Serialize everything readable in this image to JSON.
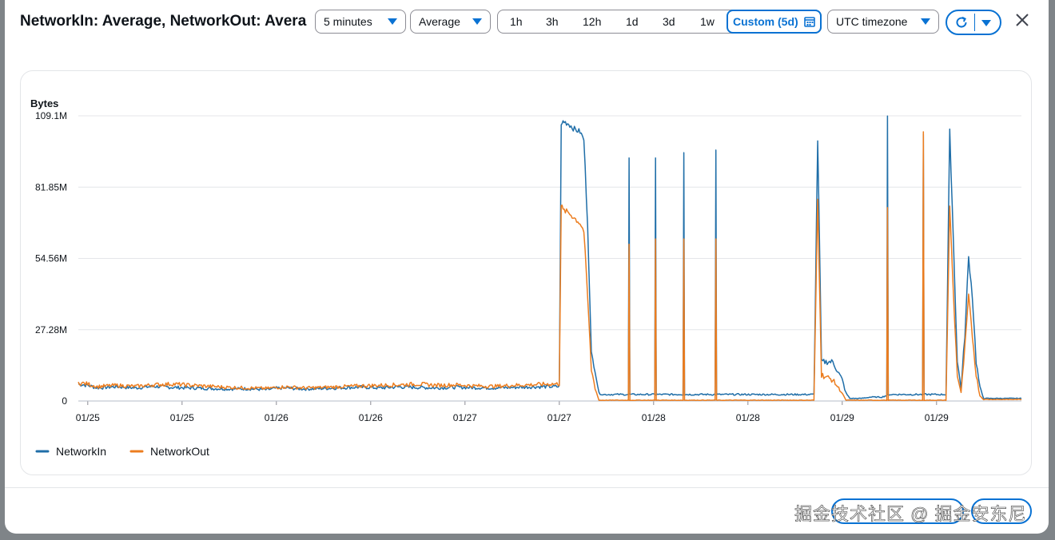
{
  "dialog": {
    "title": "NetworkIn: Average, NetworkOut: Avera",
    "period": "5 minutes",
    "statistic": "Average",
    "time_ranges": [
      "1h",
      "3h",
      "12h",
      "1d",
      "3d",
      "1w"
    ],
    "custom_range": "Custom (5d)",
    "timezone": "UTC timezone",
    "icons": {
      "close": "close-icon",
      "refresh": "refresh-icon",
      "calendar": "calendar-icon",
      "dropdown": "caret-down-icon"
    }
  },
  "footer": {
    "watermark": "掘金技术社区 @ 掘金安东尼"
  },
  "chart_data": {
    "type": "line",
    "ylabel": "Bytes",
    "yticks": [
      "109.1M",
      "81.85M",
      "54.56M",
      "27.28M",
      "0"
    ],
    "ylim": [
      0,
      109100000
    ],
    "xlim_days": [
      0,
      5
    ],
    "x_tick_labels": [
      "01/25",
      "01/25",
      "01/26",
      "01/26",
      "01/27",
      "01/27",
      "01/28",
      "01/28",
      "01/29",
      "01/29"
    ],
    "grid": true,
    "legend_position": "bottom-left",
    "colors": {
      "NetworkIn": "#1f6ea8",
      "NetworkOut": "#ec7d1f",
      "grid": "#e4e6e9"
    },
    "series": [
      {
        "name": "NetworkIn",
        "x": [
          0,
          0.05,
          0.1,
          0.2,
          0.3,
          0.4,
          0.5,
          0.6,
          0.7,
          0.8,
          0.9,
          1.0,
          1.05,
          1.1,
          1.2,
          1.3,
          1.4,
          1.5,
          1.6,
          1.7,
          1.8,
          1.9,
          2.0,
          2.1,
          2.2,
          2.3,
          2.4,
          2.5,
          2.55,
          2.56,
          2.57,
          2.6,
          2.63,
          2.66,
          2.68,
          2.7,
          2.72,
          2.74,
          2.76,
          2.78,
          2.8,
          2.82,
          2.84,
          2.86,
          2.88,
          2.9,
          2.92,
          2.94,
          2.96,
          2.98,
          3.0,
          3.1,
          3.2,
          3.3,
          3.4,
          3.42,
          3.44,
          3.5,
          3.6,
          3.7,
          3.8,
          3.9,
          3.92,
          3.94,
          4.0,
          4.05,
          4.07,
          4.09,
          4.12,
          4.15,
          4.2,
          4.26,
          4.3,
          4.32,
          4.34,
          4.4,
          4.5,
          4.53,
          4.55,
          4.57,
          4.6,
          4.62,
          4.64,
          4.66,
          4.68,
          4.7,
          4.72,
          4.74,
          4.76,
          4.78,
          4.8,
          4.82,
          4.85,
          4.9,
          5.0
        ],
        "values": [
          6.5,
          6.0,
          5.0,
          5.5,
          5.0,
          5.6,
          5.2,
          5.0,
          4.8,
          4.6,
          4.7,
          4.3,
          4.9,
          5.0,
          4.6,
          4.8,
          5.1,
          5.3,
          5.0,
          5.4,
          5.2,
          5.0,
          5.3,
          5.1,
          5.0,
          5.2,
          5.4,
          5.5,
          5.5,
          105,
          107,
          106,
          104,
          103,
          100,
          68,
          18,
          12,
          3,
          2.5,
          2.5,
          2.5,
          2.5,
          2.5,
          2.5,
          2.5,
          2.5,
          2.5,
          2.5,
          2.5,
          2.5,
          2.5,
          2.5,
          2.5,
          2.5,
          2.5,
          2.5,
          2.5,
          2.5,
          2.5,
          2.5,
          2.5,
          100,
          15,
          15,
          8,
          3,
          1,
          1,
          1,
          1.5,
          1.5,
          2.5,
          2.5,
          2.5,
          2.5,
          2.5,
          2.5,
          2.5,
          2.5,
          2.5,
          103,
          60,
          15,
          5,
          25,
          55,
          40,
          15,
          5,
          1,
          1,
          1,
          1,
          1
        ]
      },
      {
        "name": "NetworkOut",
        "x": [
          0,
          0.05,
          0.1,
          0.2,
          0.3,
          0.4,
          0.5,
          0.6,
          0.7,
          0.8,
          0.9,
          1.0,
          1.05,
          1.1,
          1.2,
          1.3,
          1.4,
          1.5,
          1.6,
          1.7,
          1.8,
          1.9,
          2.0,
          2.1,
          2.2,
          2.3,
          2.4,
          2.5,
          2.55,
          2.56,
          2.57,
          2.6,
          2.63,
          2.66,
          2.68,
          2.7,
          2.72,
          2.74,
          2.76,
          2.78,
          2.8,
          2.82,
          2.84,
          2.86,
          2.88,
          2.9,
          2.92,
          2.94,
          2.96,
          2.98,
          3.0,
          3.1,
          3.2,
          3.3,
          3.4,
          3.42,
          3.44,
          3.5,
          3.6,
          3.7,
          3.8,
          3.9,
          3.92,
          3.94,
          4.0,
          4.05,
          4.07,
          4.09,
          4.12,
          4.15,
          4.2,
          4.26,
          4.3,
          4.32,
          4.34,
          4.4,
          4.5,
          4.53,
          4.55,
          4.57,
          4.6,
          4.62,
          4.64,
          4.66,
          4.68,
          4.7,
          4.72,
          4.74,
          4.76,
          4.78,
          4.8,
          4.82,
          4.85,
          4.9,
          5.0
        ],
        "values": [
          7.0,
          6.5,
          5.5,
          6.0,
          5.6,
          6.2,
          6.5,
          6.0,
          5.6,
          5.2,
          5.0,
          4.8,
          5.2,
          5.4,
          5.0,
          5.2,
          5.5,
          5.8,
          6.0,
          6.2,
          6.5,
          6.0,
          6.2,
          5.8,
          5.6,
          6.0,
          6.2,
          6.5,
          6.5,
          75,
          73,
          72,
          70,
          68,
          65,
          40,
          12,
          5,
          0.2,
          0.2,
          0.2,
          0.2,
          0.2,
          0.2,
          0.2,
          0.2,
          0.2,
          0.2,
          0.2,
          0.2,
          0.2,
          0.2,
          0.2,
          0.2,
          0.2,
          0.2,
          0.2,
          0.2,
          0.2,
          0.2,
          0.2,
          0.2,
          77,
          10,
          8,
          3,
          0.2,
          0.2,
          0.2,
          0.2,
          0.2,
          0.2,
          0.2,
          0.2,
          0.2,
          0.2,
          0.2,
          0.2,
          0.2,
          0.2,
          0.2,
          74,
          40,
          10,
          3,
          20,
          40,
          25,
          10,
          2,
          0.5,
          0.5,
          0.5,
          0.5,
          0.5
        ]
      }
    ],
    "spikes": [
      {
        "x": 2.92,
        "NetworkIn": 93,
        "NetworkOut": 60
      },
      {
        "x": 3.06,
        "NetworkIn": 93,
        "NetworkOut": 62
      },
      {
        "x": 3.21,
        "NetworkIn": 95,
        "NetworkOut": 62
      },
      {
        "x": 3.38,
        "NetworkIn": 96,
        "NetworkOut": 62
      },
      {
        "x": 4.29,
        "NetworkIn": 109,
        "NetworkOut": 74
      },
      {
        "x": 4.48,
        "NetworkIn": 102,
        "NetworkOut": 103
      }
    ]
  }
}
